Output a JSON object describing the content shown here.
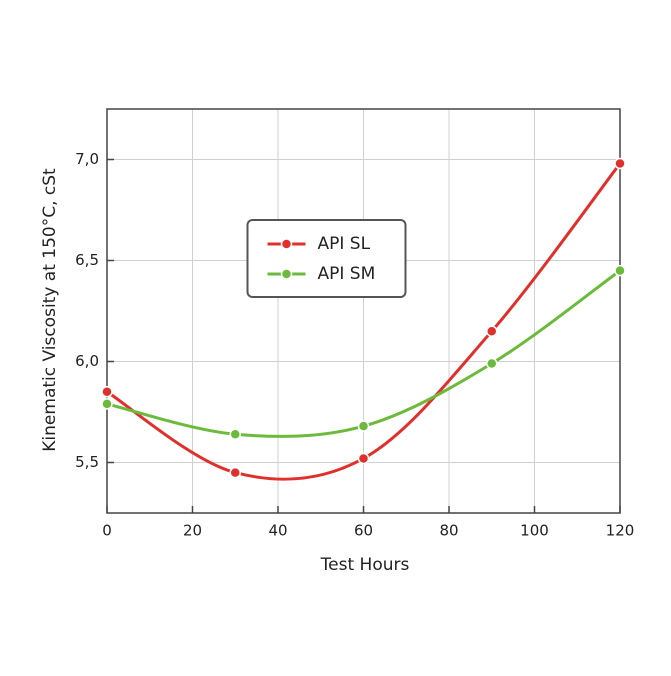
{
  "chart_data": {
    "type": "line",
    "x_label": "Test Hours",
    "y_label": "Kinematic Viscosity at 150°C, cSt",
    "x": [
      0,
      30,
      60,
      90,
      120
    ],
    "series": [
      {
        "name": "API SL",
        "color": "#e0302c",
        "values": [
          5.85,
          5.45,
          5.52,
          6.15,
          6.98
        ]
      },
      {
        "name": "API SM",
        "color": "#6cba3c",
        "values": [
          5.79,
          5.64,
          5.68,
          5.99,
          6.45
        ]
      }
    ],
    "xlim": [
      0,
      120
    ],
    "xticks": [
      0,
      20,
      40,
      60,
      80,
      100,
      120
    ],
    "ylim": [
      5.25,
      7.25
    ],
    "yticks": [
      {
        "value": 5.5,
        "label": "5,5"
      },
      {
        "value": 6.0,
        "label": "6,0"
      },
      {
        "value": 6.5,
        "label": "6,5"
      },
      {
        "value": 7.0,
        "label": "7,0"
      }
    ],
    "grid": true,
    "smooth": true,
    "legend_loc": "upper center"
  }
}
